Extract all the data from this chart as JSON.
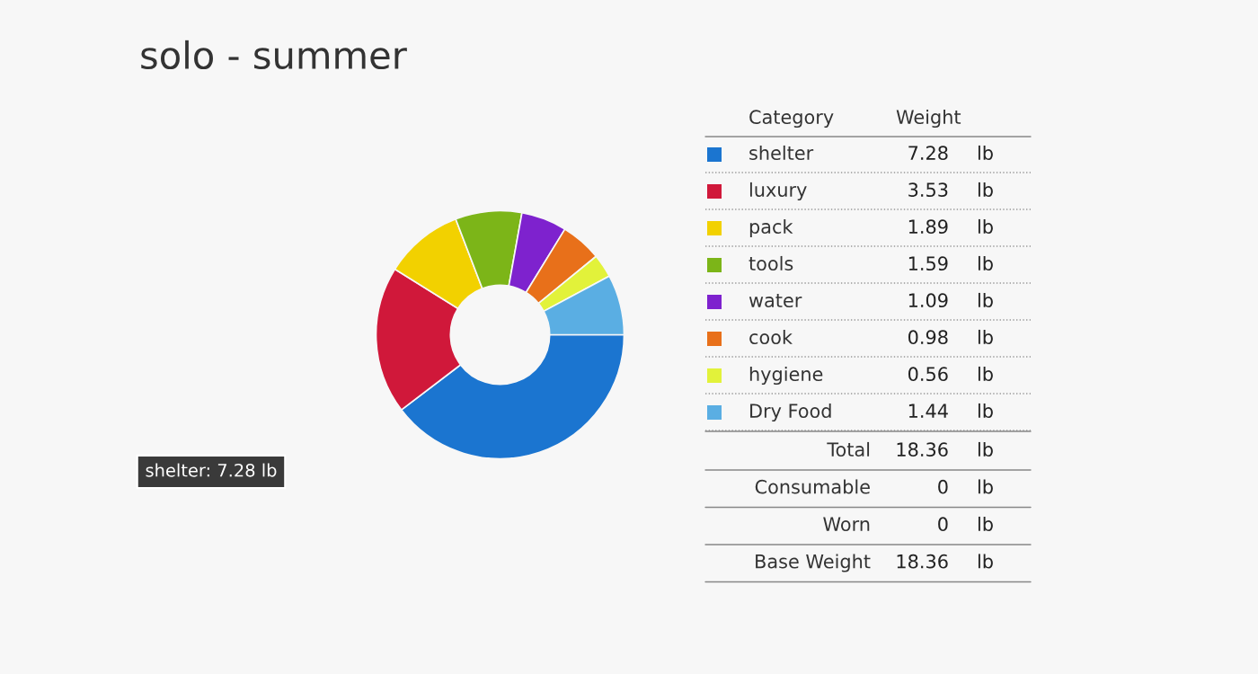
{
  "chart_data": {
    "type": "donut",
    "title": "solo - summer",
    "categories": [
      "shelter",
      "luxury",
      "pack",
      "tools",
      "water",
      "cook",
      "hygiene",
      "Dry Food"
    ],
    "values": [
      7.28,
      3.53,
      1.89,
      1.59,
      1.09,
      0.98,
      0.56,
      1.44
    ],
    "colors": [
      "#1b75d0",
      "#d0183a",
      "#f2d100",
      "#7cb518",
      "#7e22ce",
      "#e8701a",
      "#e2f23a",
      "#5aaee3"
    ],
    "value_labels": [
      "7.28 lb",
      "3.53 lb",
      "1.89 lb",
      "1.59 lb",
      "1.09 lb",
      "0.98 lb",
      "0.56 lb",
      "1.44 lb"
    ],
    "legend": "right",
    "annotations": [
      "shelter: 7.28 lb",
      "Category",
      "Weight",
      "Total 18.36 lb",
      "Consumable 0 lb",
      "Worn 0 lb",
      "Base Weight 18.36 lb"
    ]
  }
}
